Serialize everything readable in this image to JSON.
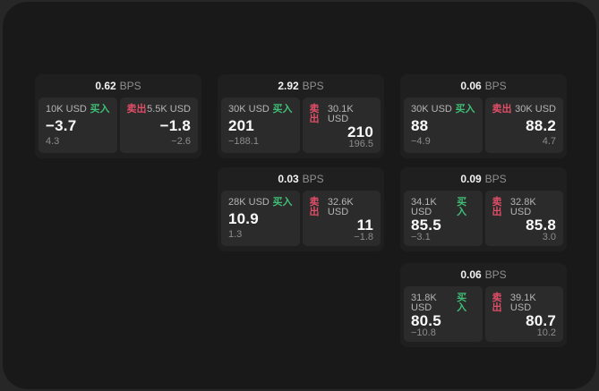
{
  "labels": {
    "bps_unit": "BPS",
    "buy": "买入",
    "sell": "卖出"
  },
  "colors": {
    "buy_green": "#3fbe75",
    "sell_red": "#e04e68",
    "value_white": "#fafafa",
    "muted_gray": "#8c8c8c",
    "label_gray": "#b5b5b5",
    "card_bg": "#1f1f1f",
    "panel_bg": "#2b2b2b",
    "window_bg": "#191919"
  },
  "cards": [
    {
      "col": 0,
      "row": 0,
      "bps": "0.62",
      "buy": {
        "notional": "10K USD",
        "value": "−3.7",
        "delta": "4.3"
      },
      "sell": {
        "notional": "5.5K USD",
        "value": "−1.8",
        "delta": "−2.6"
      }
    },
    {
      "col": 1,
      "row": 0,
      "bps": "2.92",
      "buy": {
        "notional": "30K USD",
        "value": "201",
        "delta": "−188.1"
      },
      "sell": {
        "notional": "30.1K USD",
        "value": "210",
        "delta": "196.5"
      }
    },
    {
      "col": 2,
      "row": 0,
      "bps": "0.06",
      "buy": {
        "notional": "30K USD",
        "value": "88",
        "delta": "−4.9"
      },
      "sell": {
        "notional": "30K USD",
        "value": "88.2",
        "delta": "4.7"
      }
    },
    {
      "col": 1,
      "row": 1,
      "bps": "0.03",
      "buy": {
        "notional": "28K USD",
        "value": "10.9",
        "delta": "1.3"
      },
      "sell": {
        "notional": "32.6K USD",
        "value": "11",
        "delta": "−1.8"
      }
    },
    {
      "col": 2,
      "row": 1,
      "bps": "0.09",
      "buy": {
        "notional": "34.1K USD",
        "value": "85.5",
        "delta": "−3.1"
      },
      "sell": {
        "notional": "32.8K USD",
        "value": "85.8",
        "delta": "3.0"
      }
    },
    {
      "col": 2,
      "row": 2,
      "bps": "0.06",
      "buy": {
        "notional": "31.8K USD",
        "value": "80.5",
        "delta": "−10.8"
      },
      "sell": {
        "notional": "39.1K USD",
        "value": "80.7",
        "delta": "10.2"
      }
    }
  ]
}
